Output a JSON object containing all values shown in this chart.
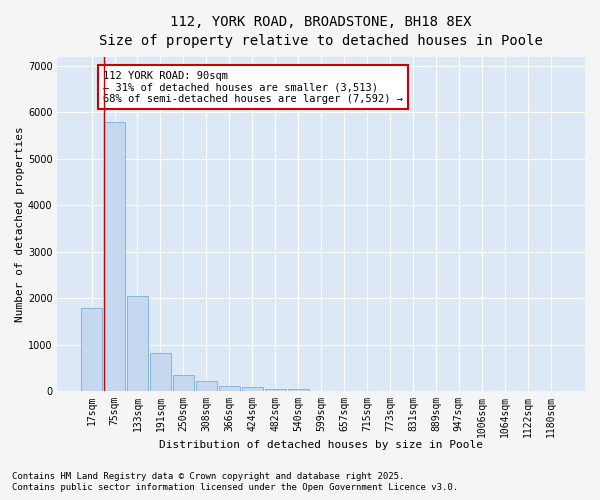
{
  "title_line1": "112, YORK ROAD, BROADSTONE, BH18 8EX",
  "title_line2": "Size of property relative to detached houses in Poole",
  "xlabel": "Distribution of detached houses by size in Poole",
  "ylabel": "Number of detached properties",
  "categories": [
    "17sqm",
    "75sqm",
    "133sqm",
    "191sqm",
    "250sqm",
    "308sqm",
    "366sqm",
    "424sqm",
    "482sqm",
    "540sqm",
    "599sqm",
    "657sqm",
    "715sqm",
    "773sqm",
    "831sqm",
    "889sqm",
    "947sqm",
    "1006sqm",
    "1064sqm",
    "1122sqm",
    "1180sqm"
  ],
  "values": [
    1800,
    5800,
    2050,
    830,
    360,
    220,
    120,
    90,
    50,
    50,
    0,
    0,
    0,
    0,
    0,
    0,
    0,
    0,
    0,
    0,
    0
  ],
  "bar_color": "#c5d8f0",
  "bar_edge_color": "#7aafd4",
  "vline_color": "#cc0000",
  "vline_x_index": 1,
  "ylim": [
    0,
    7200
  ],
  "yticks": [
    0,
    1000,
    2000,
    3000,
    4000,
    5000,
    6000,
    7000
  ],
  "annotation_box_text": "112 YORK ROAD: 90sqm\n← 31% of detached houses are smaller (3,513)\n68% of semi-detached houses are larger (7,592) →",
  "annotation_box_color": "#cc0000",
  "annotation_box_bg": "#ffffff",
  "footnote_line1": "Contains HM Land Registry data © Crown copyright and database right 2025.",
  "footnote_line2": "Contains public sector information licensed under the Open Government Licence v3.0.",
  "fig_bg_color": "#f5f5f5",
  "plot_bg_color": "#dce8f5",
  "grid_color": "#ffffff",
  "title_fontsize": 10,
  "subtitle_fontsize": 9,
  "axis_label_fontsize": 8,
  "tick_fontsize": 7,
  "annotation_fontsize": 7.5,
  "footnote_fontsize": 6.5
}
